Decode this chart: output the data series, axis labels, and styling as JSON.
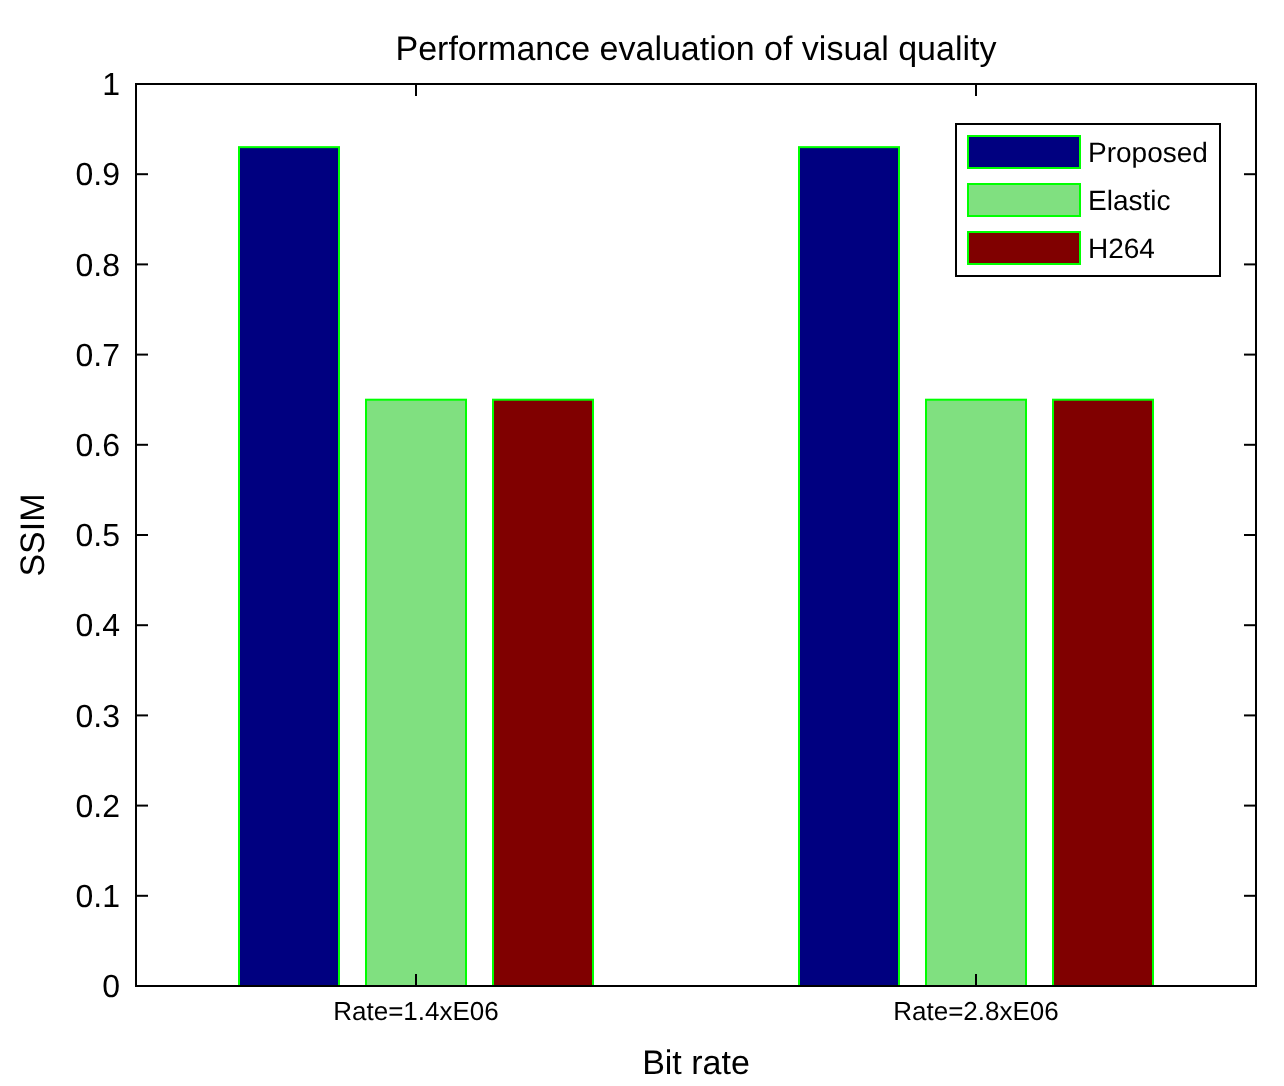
{
  "chart_data": {
    "type": "bar",
    "title": "Performance evaluation of visual quality",
    "xlabel": "Bit rate",
    "ylabel": "SSIM",
    "categories": [
      "Rate=1.4xE06",
      "Rate=2.8xE06"
    ],
    "series": [
      {
        "name": "Proposed",
        "color": "#000080",
        "values": [
          0.93,
          0.93
        ]
      },
      {
        "name": "Elastic",
        "color": "#80e080",
        "values": [
          0.65,
          0.65
        ]
      },
      {
        "name": "H264",
        "color": "#800000",
        "values": [
          0.65,
          0.65
        ]
      }
    ],
    "ylim": [
      0,
      1
    ],
    "yticks": [
      0,
      0.1,
      0.2,
      0.3,
      0.4,
      0.5,
      0.6,
      0.7,
      0.8,
      0.9,
      1
    ],
    "grid": false,
    "legend": "top right"
  }
}
